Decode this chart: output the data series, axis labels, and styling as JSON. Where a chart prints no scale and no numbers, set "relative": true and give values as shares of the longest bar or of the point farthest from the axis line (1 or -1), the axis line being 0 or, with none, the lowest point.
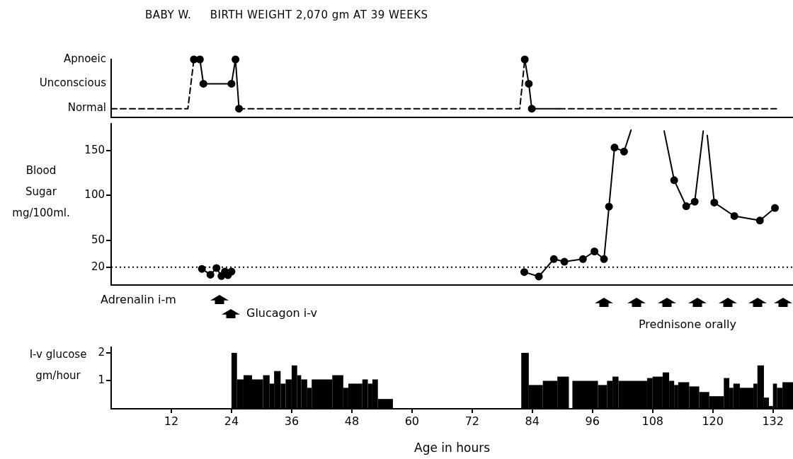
{
  "chart_data": [
    {
      "type": "line",
      "title": "BABY W.     BIRTH WEIGHT 2,070 gm AT 39 WEEKS",
      "xlim": [
        0,
        136
      ],
      "relative": true,
      "tick_labels": false,
      "legend": false,
      "annotations": [
        "Normal",
        "Unconscious",
        "Apnoeic"
      ],
      "series": [
        {
          "color": "#000000",
          "marker": "none",
          "line_style": "dashed",
          "x": [
            0,
            15.3,
            16.5
          ],
          "values": [
            0.15,
            0.15,
            1
          ]
        },
        {
          "color": "#000000",
          "marker": "circle",
          "line_style": "solid",
          "x": [
            16.5,
            17.7,
            18.4,
            24.0,
            24.8,
            25.5
          ],
          "values": [
            1,
            1,
            0.58,
            0.58,
            1,
            0.15
          ]
        },
        {
          "color": "#000000",
          "marker": "none",
          "line_style": "dashed",
          "x": [
            25.5,
            81.5,
            82.5
          ],
          "values": [
            0.15,
            0.15,
            1
          ]
        },
        {
          "color": "#000000",
          "marker": "circle",
          "line_style": "solid",
          "x": [
            82.5,
            83.3,
            83.9
          ],
          "values": [
            1,
            0.58,
            0.15
          ]
        },
        {
          "color": "#000000",
          "marker": "none",
          "line_style": "solid",
          "x": [
            83.9,
            89.4
          ],
          "values": [
            0.15,
            0.15
          ]
        },
        {
          "color": "#000000",
          "marker": "none",
          "line_style": "dashed",
          "x": [
            89.4,
            132.7
          ],
          "values": [
            0.15,
            0.15
          ]
        }
      ]
    },
    {
      "type": "line",
      "ylabel": "Blood Sugar mg/100ml.",
      "xlim": [
        0,
        136
      ],
      "ylim": [
        0,
        180
      ],
      "yticks": [
        20,
        50,
        100,
        150
      ],
      "tick_labels": "y",
      "legend": false,
      "ref_lines": [
        {
          "axis": "y",
          "value": 20,
          "line_style": "dotted",
          "color": "#000000"
        }
      ],
      "annotations": [
        "Adrenalin i-m",
        "Glucagon i-v",
        "Prednisone orally"
      ],
      "series": [
        {
          "color": "#000000",
          "marker": "circle",
          "line_style": "solid",
          "x": [
            18.1,
            19.8,
            21.0,
            22.0,
            22.7,
            23.3,
            24.0
          ],
          "values": [
            18,
            11.5,
            19,
            10,
            15,
            11,
            15
          ]
        },
        {
          "color": "#000000",
          "marker": "circle",
          "line_style": "solid",
          "x": [
            82.4,
            85.3,
            88.3,
            90.4,
            94.1,
            96.4,
            98.3,
            99.3,
            100.4,
            102.3
          ],
          "values": [
            14.5,
            9.5,
            29,
            26,
            29,
            37.5,
            29,
            87.5,
            153.5,
            149
          ]
        },
        {
          "color": "#000000",
          "marker": "none",
          "line_style": "solid",
          "x": [
            102.3,
            103.7
          ],
          "values": [
            149,
            173
          ]
        },
        {
          "color": "#000000",
          "marker": "none",
          "line_style": "solid",
          "x": [
            110.3,
            112.25
          ],
          "values": [
            172,
            118.4
          ]
        },
        {
          "color": "#000000",
          "marker": "circle",
          "line_style": "solid",
          "x": [
            112.3,
            114.7,
            116.4
          ],
          "values": [
            117,
            88,
            93
          ]
        },
        {
          "color": "#000000",
          "marker": "none",
          "line_style": "solid",
          "x": [
            116.4,
            118.1
          ],
          "values": [
            93,
            172
          ]
        },
        {
          "color": "#000000",
          "marker": "none",
          "line_style": "solid",
          "x": [
            118.9,
            120.25
          ],
          "values": [
            167,
            94.7
          ]
        },
        {
          "color": "#000000",
          "marker": "circle",
          "line_style": "solid",
          "x": [
            120.3,
            124.3,
            129.4,
            132.4
          ],
          "values": [
            92,
            77,
            72,
            86
          ]
        }
      ]
    },
    {
      "type": "histogram",
      "ylabel": "I-v glucose gm/hour",
      "xlabel": "Age in hours",
      "xlim": [
        0,
        136
      ],
      "ylim": [
        0,
        2.2
      ],
      "yticks": [
        1,
        2
      ],
      "xticks": [
        12,
        24,
        36,
        48,
        60,
        72,
        84,
        96,
        108,
        120,
        132
      ],
      "legend": false,
      "color": "#000000",
      "bins": [
        24,
        25.1,
        26.4,
        28.1,
        30.3,
        31.6,
        32.5,
        33.8,
        34.8,
        36,
        37.1,
        37.9,
        39.1,
        40,
        44.1,
        46.3,
        47.3,
        50.1,
        51.2,
        52.1,
        53.2,
        56.2,
        81.8,
        83.3,
        86.1,
        89.0,
        91.3,
        92.0,
        97.1,
        98.9,
        100.0,
        101.2,
        106.9,
        108.0,
        110.0,
        111.3,
        112.3,
        113.1,
        115.3,
        117.3,
        119.3,
        122.2,
        123.3,
        124.1,
        125.4,
        128.1,
        128.9,
        130.2,
        131.2,
        132.0,
        132.8,
        133.9,
        136
      ],
      "values": [
        2.0,
        1.05,
        1.2,
        1.05,
        1.2,
        0.9,
        1.35,
        0.9,
        1.05,
        1.55,
        1.2,
        1.05,
        0.75,
        1.05,
        1.2,
        0.75,
        0.9,
        1.05,
        0.9,
        1.05,
        0.35,
        0,
        2.0,
        0.85,
        1.0,
        1.15,
        0,
        1.0,
        0.85,
        1.0,
        1.15,
        1.0,
        1.1,
        1.15,
        1.3,
        1.0,
        0.85,
        0.95,
        0.8,
        0.6,
        0.45,
        1.1,
        0.75,
        0.9,
        0.75,
        0.9,
        1.55,
        0.4,
        0.1,
        0.9,
        0.75,
        0.95
      ]
    }
  ]
}
